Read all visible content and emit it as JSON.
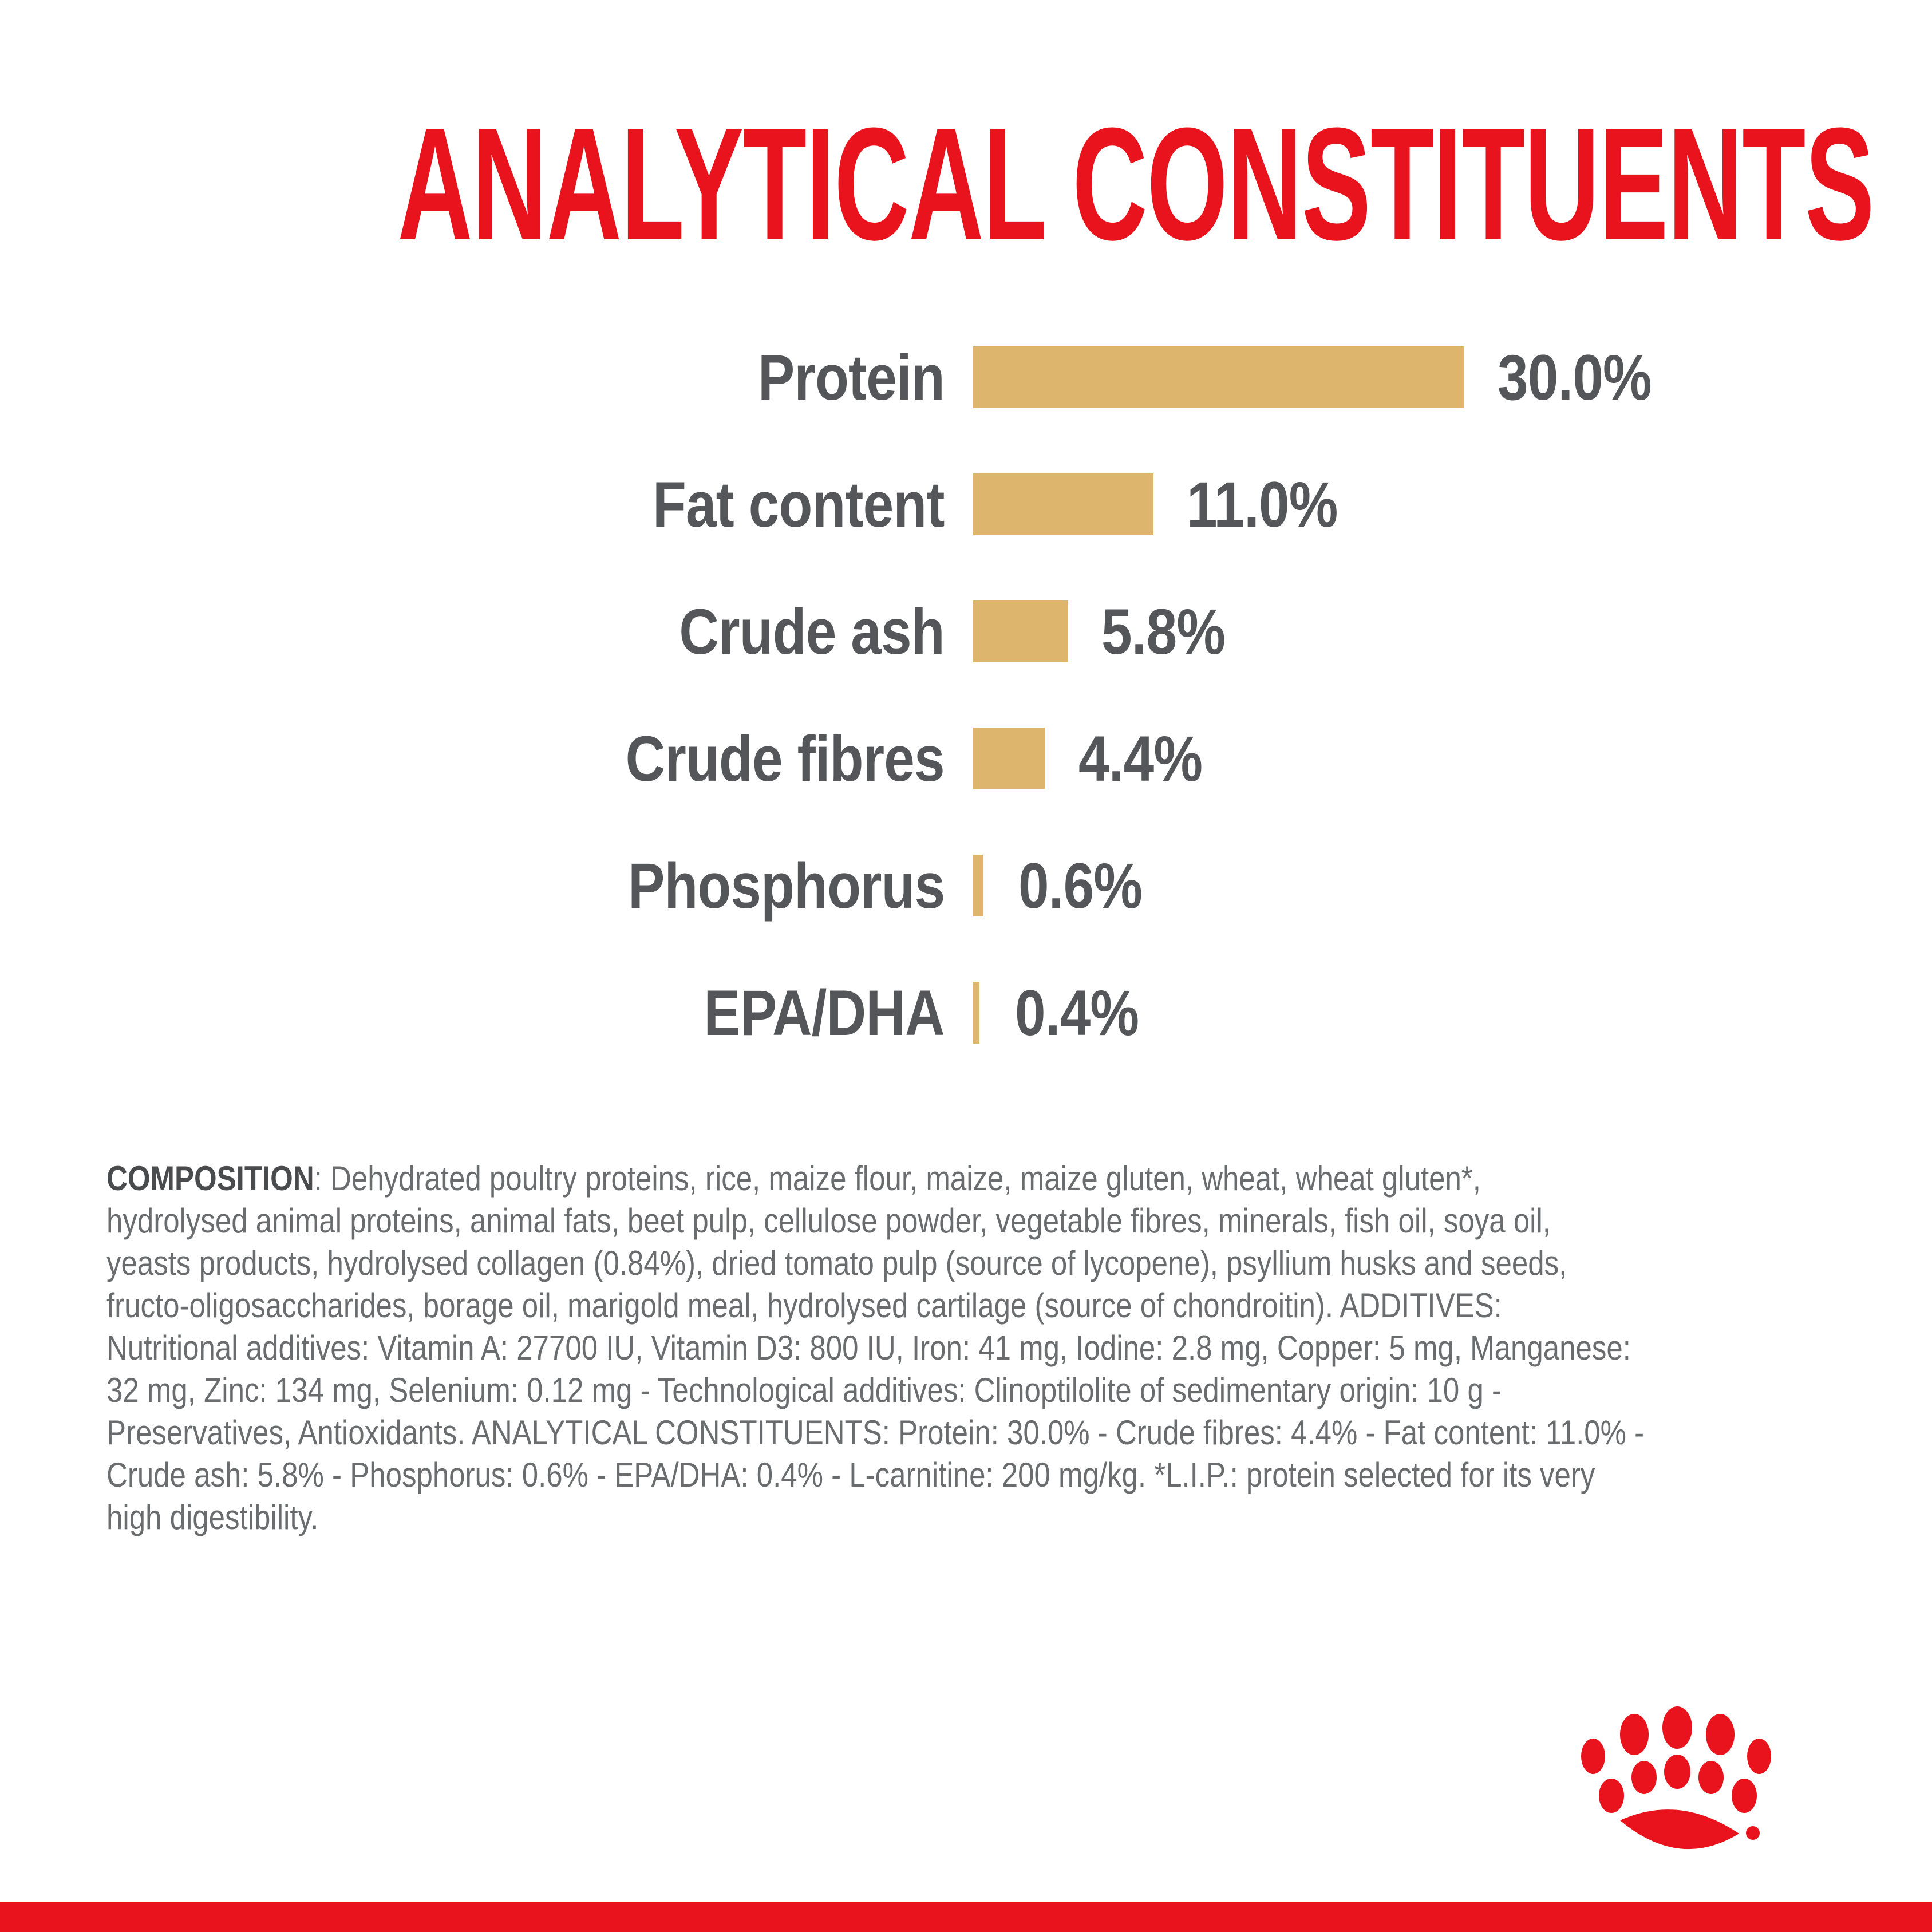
{
  "page": {
    "background": "#ffffff",
    "brand_red": "#e8131c",
    "bar_gold": "#ddb56c",
    "label_gray": "#55565a",
    "body_gray": "#6b6c6e",
    "heading_gray": "#4a4b4d"
  },
  "title": "ANALYTICAL CONSTITUENTS",
  "chart_data": {
    "type": "bar",
    "orientation": "horizontal",
    "title": "ANALYTICAL CONSTITUENTS",
    "unit": "%",
    "categories": [
      "Protein",
      "Fat content",
      "Crude ash",
      "Crude fibres",
      "Phosphorus",
      "EPA/DHA"
    ],
    "values": [
      30.0,
      11.0,
      5.8,
      4.4,
      0.6,
      0.4
    ],
    "value_labels": [
      "30.0%",
      "11.0%",
      "5.8%",
      "4.4%",
      "0.6%",
      "0.4%"
    ],
    "xlim": [
      0,
      30
    ],
    "bar_color": "#ddb56c",
    "grid": false,
    "legend": false,
    "value_label_position": "right-of-bar",
    "category_label_position": "left-of-bar"
  },
  "composition": {
    "heading": "COMPOSITION",
    "lines": [
      ": Dehydrated poultry proteins, rice, maize flour, maize, maize gluten, wheat, wheat gluten*,",
      "hydrolysed animal proteins, animal fats, beet pulp, cellulose powder, vegetable fibres, minerals, fish oil, soya oil,",
      "yeasts products, hydrolysed collagen (0.84%), dried tomato pulp (source of lycopene), psyllium husks and seeds,",
      "fructo-oligosaccharides, borage oil, marigold meal, hydrolysed cartilage (source of chondroitin). ADDITIVES:",
      "Nutritional additives: Vitamin A: 27700 IU, Vitamin D3: 800 IU, Iron: 41 mg, Iodine: 2.8 mg, Copper: 5 mg, Manganese:",
      "32 mg, Zinc: 134 mg, Selenium: 0.12 mg - Technological additives: Clinoptilolite of sedimentary origin: 10 g -",
      "Preservatives, Antioxidants. ANALYTICAL CONSTITUENTS: Protein: 30.0% - Crude fibres: 4.4% - Fat content: 11.0% -",
      "Crude ash: 5.8% - Phosphorus: 0.6% - EPA/DHA: 0.4% - L-carnitine: 200 mg/kg. *L.I.P.:  protein selected for its very",
      "high digestibility."
    ]
  },
  "logo": {
    "name": "royal-canin-crown",
    "color": "#e8131c"
  }
}
